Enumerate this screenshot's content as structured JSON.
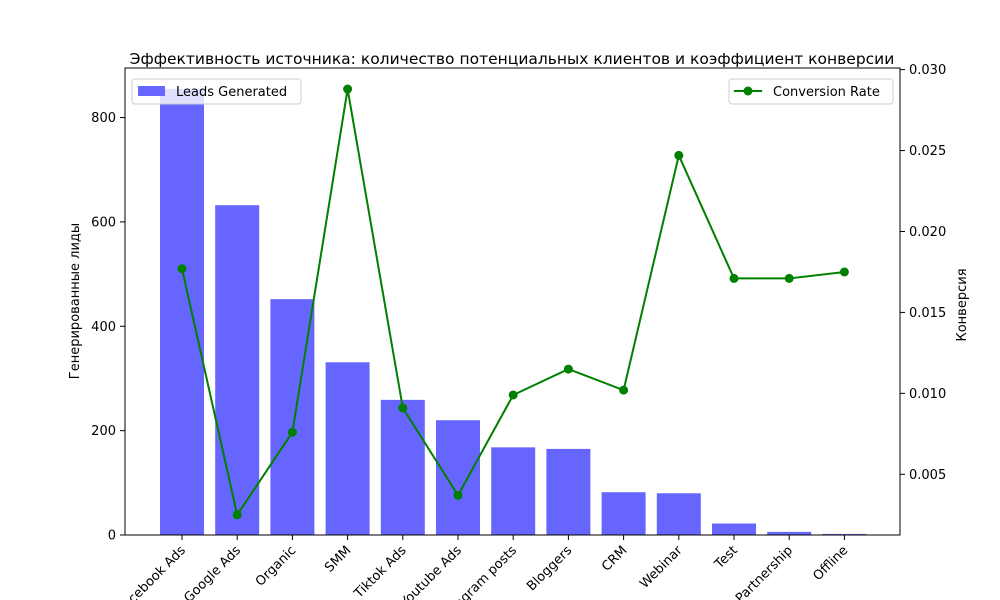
{
  "chart_data": {
    "type": "bar",
    "title": "Эффективность источника: количество потенциальных клиентов и коэффициент конверсии",
    "xlabel": "",
    "ylabel": "Генерированные лиды",
    "y2label": "Конверсия",
    "categories": [
      "Facebook Ads",
      "Google Ads",
      "Organic",
      "SMM",
      "Tiktok Ads",
      "Youtube Ads",
      "Instagram posts",
      "Bloggers",
      "CRM",
      "Webinar",
      "Test",
      "Partnership",
      "Offline"
    ],
    "series": [
      {
        "name": "Leads Generated",
        "type": "bar",
        "axis": "left",
        "color": "#6666ff",
        "values": [
          855,
          632,
          452,
          331,
          259,
          220,
          168,
          165,
          82,
          80,
          22,
          6,
          2
        ]
      },
      {
        "name": "Conversion Rate",
        "type": "line",
        "axis": "right",
        "color": "#008000",
        "values": [
          0.0177,
          0.0025,
          0.0076,
          0.0288,
          0.0091,
          0.0037,
          0.0099,
          0.0115,
          0.0102,
          0.0247,
          0.0171,
          0.0171,
          0.0175
        ]
      }
    ],
    "ylim": [
      0,
      895
    ],
    "yticks": [
      "0",
      "200",
      "400",
      "600",
      "800"
    ],
    "y2lim": [
      0.00125,
      0.0301
    ],
    "y2ticks": [
      "0.005",
      "0.010",
      "0.015",
      "0.020",
      "0.025",
      "0.030"
    ],
    "legends": [
      {
        "placement": "upper-left",
        "entries": [
          "Leads Generated"
        ]
      },
      {
        "placement": "upper-right",
        "entries": [
          "Conversion Rate"
        ]
      }
    ],
    "grid": false
  }
}
